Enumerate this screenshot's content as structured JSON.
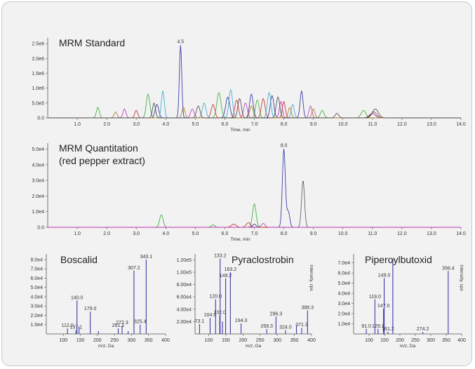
{
  "chart_data": [
    {
      "type": "line",
      "title": "MRM Standard",
      "xlabel": "Time, min",
      "xlim": [
        0,
        14
      ],
      "ylim": [
        0,
        2600000
      ],
      "yticks": [
        "0.0",
        "5.0e5",
        "1.0e6",
        "1.5e6",
        "2.0e6",
        "2.5e6"
      ],
      "xticks": [
        "1.0",
        "2.0",
        "3.0",
        "4.0",
        "5.0",
        "6.0",
        "7.0",
        "8.0",
        "9.0",
        "10.0",
        "11.0",
        "12.0",
        "13.0",
        "14.0"
      ],
      "peak_label": "4.5",
      "series": [
        {
          "color": "#2a2aa0",
          "peaks": [
            [
              4.5,
              2450000,
              0.04
            ],
            [
              6.1,
              700000,
              0.07
            ],
            [
              6.9,
              800000,
              0.06
            ],
            [
              7.6,
              750000,
              0.06
            ],
            [
              8.6,
              900000,
              0.05
            ],
            [
              3.7,
              450000,
              0.06
            ],
            [
              11.0,
              150000,
              0.1
            ]
          ]
        },
        {
          "color": "#cc2222",
          "peaks": [
            [
              3.0,
              250000,
              0.05
            ],
            [
              5.6,
              450000,
              0.06
            ],
            [
              6.4,
              600000,
              0.06
            ],
            [
              7.3,
              650000,
              0.06
            ],
            [
              8.0,
              550000,
              0.05
            ],
            [
              11.05,
              200000,
              0.1
            ]
          ]
        },
        {
          "color": "#33aa33",
          "peaks": [
            [
              1.7,
              350000,
              0.05
            ],
            [
              3.4,
              800000,
              0.06
            ],
            [
              5.8,
              850000,
              0.07
            ],
            [
              7.1,
              600000,
              0.06
            ],
            [
              9.3,
              250000,
              0.06
            ],
            [
              10.7,
              250000,
              0.08
            ]
          ]
        },
        {
          "color": "#bb33bb",
          "peaks": [
            [
              2.6,
              300000,
              0.05
            ],
            [
              4.9,
              300000,
              0.06
            ],
            [
              6.7,
              500000,
              0.06
            ],
            [
              7.9,
              550000,
              0.05
            ],
            [
              8.9,
              400000,
              0.05
            ]
          ]
        },
        {
          "color": "#33aacc",
          "peaks": [
            [
              3.9,
              900000,
              0.05
            ],
            [
              5.3,
              500000,
              0.06
            ],
            [
              6.2,
              950000,
              0.06
            ],
            [
              7.5,
              850000,
              0.06
            ],
            [
              8.3,
              450000,
              0.05
            ]
          ]
        },
        {
          "color": "#aa7722",
          "peaks": [
            [
              2.3,
              200000,
              0.05
            ],
            [
              4.6,
              350000,
              0.05
            ],
            [
              6.9,
              400000,
              0.06
            ],
            [
              8.2,
              350000,
              0.05
            ],
            [
              9.0,
              300000,
              0.05
            ]
          ]
        },
        {
          "color": "#444444",
          "peaks": [
            [
              3.6,
              500000,
              0.05
            ],
            [
              5.1,
              400000,
              0.06
            ],
            [
              6.5,
              650000,
              0.06
            ],
            [
              7.8,
              700000,
              0.06
            ],
            [
              9.8,
              150000,
              0.06
            ],
            [
              11.1,
              300000,
              0.1
            ]
          ]
        }
      ]
    },
    {
      "type": "line",
      "title": "MRM Quantitation",
      "subtitle": "(red pepper extract)",
      "xlabel": "Time, min",
      "xlim": [
        0,
        14
      ],
      "ylim": [
        0,
        52000
      ],
      "yticks": [
        "0.0",
        "1.0e4",
        "2.0e4",
        "3.0e4",
        "4.0e4",
        "5.0e4"
      ],
      "xticks": [
        "1.0",
        "2.0",
        "3.0",
        "4.0",
        "5.0",
        "6.0",
        "7.0",
        "8.0",
        "9.0",
        "10.0",
        "11.0",
        "12.0",
        "13.0",
        "14.0"
      ],
      "peak_label": "8.0",
      "series": [
        {
          "color": "#2a2aa0",
          "peaks": [
            [
              8.0,
              50000,
              0.05
            ],
            [
              8.15,
              10000,
              0.05
            ],
            [
              7.0,
              2000,
              0.06
            ]
          ]
        },
        {
          "color": "#555555",
          "peaks": [
            [
              8.65,
              30000,
              0.05
            ]
          ]
        },
        {
          "color": "#33aa33",
          "peaks": [
            [
              3.85,
              8000,
              0.06
            ],
            [
              7.0,
              15000,
              0.06
            ],
            [
              5.6,
              1500,
              0.06
            ]
          ]
        },
        {
          "color": "#cc2222",
          "peaks": [
            [
              6.3,
              2000,
              0.08
            ],
            [
              6.8,
              3000,
              0.07
            ]
          ]
        },
        {
          "color": "#bb33bb",
          "peaks": [
            [
              7.3,
              2500,
              0.06
            ]
          ]
        }
      ]
    },
    {
      "type": "bar",
      "title": "Boscalid",
      "xlabel": "m/z, Da",
      "xlim": [
        50,
        400
      ],
      "ylim": [
        0,
        83000
      ],
      "yticks": [
        "1.0e4",
        "2.0e4",
        "3.0e4",
        "4.0e4",
        "5.0e4",
        "6.0e4",
        "7.0e4",
        "8.0e4"
      ],
      "xticks": [
        "100",
        "150",
        "200",
        "250",
        "300",
        "350",
        "400"
      ],
      "peaks": [
        [
          112.0,
          6000,
          "112.0"
        ],
        [
          137.1,
          4000,
          "137.1"
        ],
        [
          140.0,
          36000,
          "140.0"
        ],
        [
          179.0,
          24000,
          "179.0"
        ],
        [
          261.1,
          6000,
          "261.1"
        ],
        [
          272.3,
          9000,
          "272.3"
        ],
        [
          307.2,
          68000,
          "307.2"
        ],
        [
          325.4,
          10000,
          "325.4"
        ],
        [
          343.1,
          80000,
          "343.1"
        ],
        [
          146.0,
          8000,
          ""
        ],
        [
          203.0,
          3000,
          ""
        ],
        [
          290.0,
          3000,
          ""
        ]
      ]
    },
    {
      "type": "bar",
      "title": "Pyraclostrobin",
      "xlabel": "m/z, Da",
      "ylabel": "Intensity, cps",
      "xlim": [
        60,
        400
      ],
      "ylim": [
        0,
        125000
      ],
      "yticks": [
        "2.00e4",
        "4.00e4",
        "6.00e4",
        "8.00e4",
        "1.00e5",
        "1.20e5"
      ],
      "xticks": [
        "100",
        "150",
        "200",
        "250",
        "300",
        "350",
        "400"
      ],
      "peaks": [
        [
          73.1,
          16000,
          "73.1"
        ],
        [
          104.0,
          26000,
          "104.0"
        ],
        [
          120.0,
          56000,
          "120.0"
        ],
        [
          132.0,
          30000,
          "132.0"
        ],
        [
          133.2,
          122000,
          "133.2"
        ],
        [
          149.2,
          90000,
          "149.2"
        ],
        [
          163.2,
          100000,
          "163.2"
        ],
        [
          194.3,
          17000,
          "194.3"
        ],
        [
          269.3,
          8000,
          "269.3"
        ],
        [
          296.3,
          28000,
          "296.3"
        ],
        [
          324.0,
          6000,
          "324.0"
        ],
        [
          371.3,
          10000,
          "371.3"
        ],
        [
          388.3,
          38000,
          "388.3"
        ],
        [
          140.0,
          20000,
          ""
        ],
        [
          356.0,
          14000,
          ""
        ]
      ]
    },
    {
      "type": "bar",
      "title": "Piperoylbutoxid",
      "xlabel": "m/z, Da",
      "ylabel": "Intensity, cps",
      "xlim": [
        50,
        400
      ],
      "ylim": [
        0,
        76000
      ],
      "yticks": [
        "1.0e4",
        "2.0e4",
        "3.0e4",
        "4.0e4",
        "5.0e4",
        "6.0e4",
        "7.0e4"
      ],
      "xticks": [
        "100",
        "150",
        "200",
        "250",
        "300",
        "350",
        "400"
      ],
      "peaks": [
        [
          91.0,
          5000,
          "91.0"
        ],
        [
          119.0,
          34000,
          "119.0"
        ],
        [
          129.1,
          5000,
          "129.1"
        ],
        [
          147.0,
          25000,
          "147.0"
        ],
        [
          149.0,
          55000,
          "149.0"
        ],
        [
          161.2,
          2000,
          "161.2"
        ],
        [
          177.0,
          74000,
          ""
        ],
        [
          274.2,
          2000,
          "274.2"
        ],
        [
          356.4,
          62000,
          "356.4"
        ]
      ]
    }
  ]
}
